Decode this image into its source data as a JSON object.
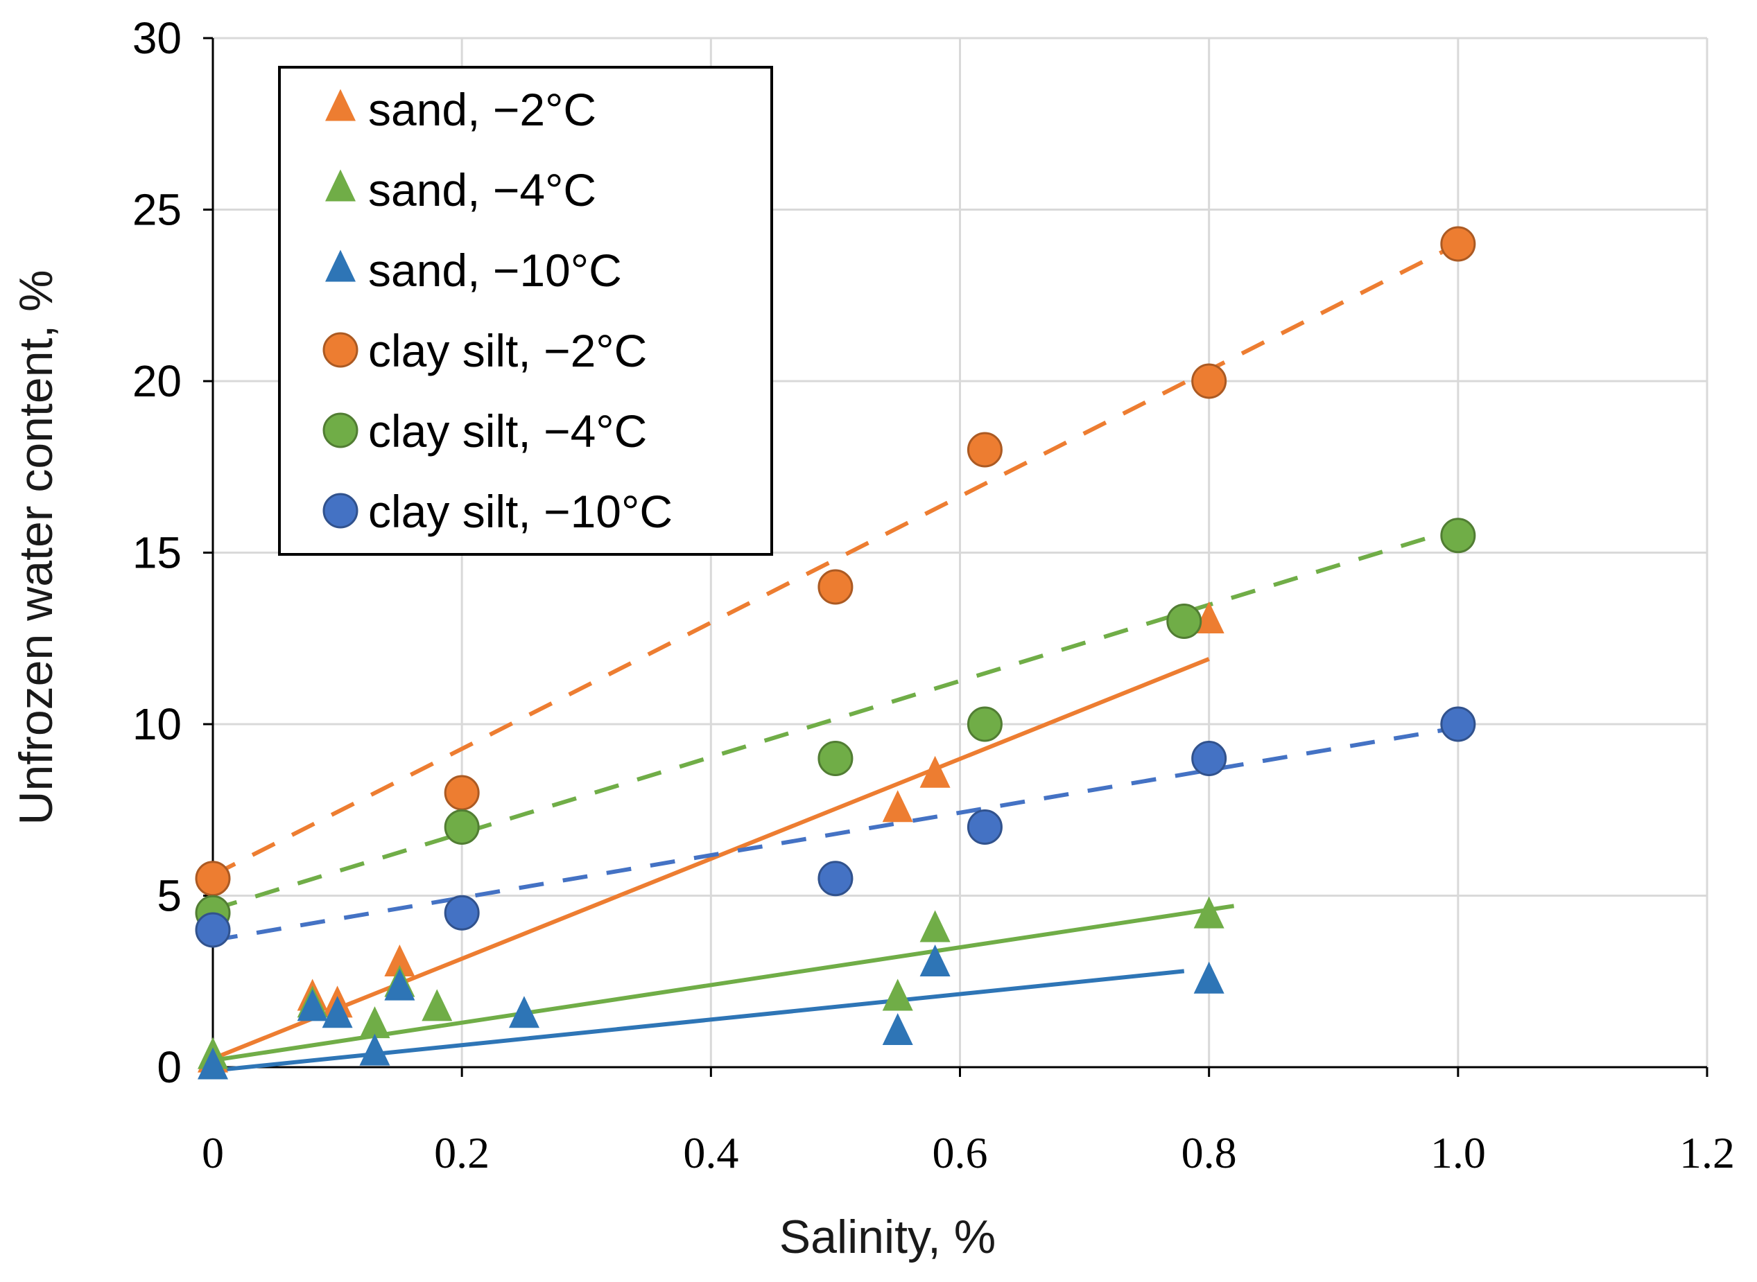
{
  "chart_data": {
    "type": "scatter",
    "title": "",
    "xlabel": "Salinity, %",
    "ylabel": "Unfrozen water content, %",
    "xlim": [
      0,
      1.2
    ],
    "ylim": [
      0,
      30
    ],
    "grid": true,
    "legend_position": "top-left",
    "x_ticks": [
      {
        "value": 0,
        "label": "0"
      },
      {
        "value": 0.2,
        "label": "0.2"
      },
      {
        "value": 0.4,
        "label": "0.4"
      },
      {
        "value": 0.6,
        "label": "0.6"
      },
      {
        "value": 0.8,
        "label": "0.8"
      },
      {
        "value": 1.0,
        "label": "1.0"
      },
      {
        "value": 1.2,
        "label": "1.2"
      }
    ],
    "y_ticks": [
      {
        "value": 0,
        "label": "0"
      },
      {
        "value": 5,
        "label": "5"
      },
      {
        "value": 10,
        "label": "10"
      },
      {
        "value": 15,
        "label": "15"
      },
      {
        "value": 20,
        "label": "20"
      },
      {
        "value": 25,
        "label": "25"
      },
      {
        "value": 30,
        "label": "30"
      }
    ],
    "series": [
      {
        "name": "sand, −2°C",
        "marker": "triangle",
        "color": "#ED7D31",
        "points": [
          [
            0,
            0.2
          ],
          [
            0.08,
            2.0
          ],
          [
            0.1,
            1.8
          ],
          [
            0.15,
            3.0
          ],
          [
            0.55,
            7.5
          ],
          [
            0.58,
            8.5
          ],
          [
            0.8,
            13.0
          ]
        ],
        "trend": {
          "style": "solid",
          "x": [
            0,
            0.8
          ],
          "y": [
            0.25,
            11.9
          ]
        }
      },
      {
        "name": "sand, −4°C",
        "marker": "triangle",
        "color": "#70AD47",
        "points": [
          [
            0,
            0.3
          ],
          [
            0.08,
            1.8
          ],
          [
            0.13,
            1.2
          ],
          [
            0.15,
            2.4
          ],
          [
            0.18,
            1.7
          ],
          [
            0.55,
            2.0
          ],
          [
            0.58,
            4.0
          ],
          [
            0.8,
            4.4
          ]
        ],
        "trend": {
          "style": "solid",
          "x": [
            0,
            0.82
          ],
          "y": [
            0.2,
            4.7
          ]
        }
      },
      {
        "name": "sand, −10°C",
        "marker": "triangle",
        "color": "#2E75B6",
        "points": [
          [
            0,
            0.0
          ],
          [
            0.08,
            1.7
          ],
          [
            0.1,
            1.5
          ],
          [
            0.13,
            0.4
          ],
          [
            0.15,
            2.3
          ],
          [
            0.25,
            1.5
          ],
          [
            0.55,
            1.0
          ],
          [
            0.58,
            3.0
          ],
          [
            0.8,
            2.5
          ]
        ],
        "trend": {
          "style": "solid",
          "x": [
            0,
            0.78
          ],
          "y": [
            -0.1,
            2.8
          ]
        }
      },
      {
        "name": "clay silt, −2°C",
        "marker": "circle",
        "color": "#ED7D31",
        "points": [
          [
            0,
            5.5
          ],
          [
            0.2,
            8.0
          ],
          [
            0.5,
            14.0
          ],
          [
            0.62,
            18.0
          ],
          [
            0.8,
            20.0
          ],
          [
            1.0,
            24.0
          ]
        ],
        "trend": {
          "style": "dashed",
          "x": [
            0,
            1.0
          ],
          "y": [
            5.6,
            24.0
          ]
        }
      },
      {
        "name": "clay silt, −4°C",
        "marker": "circle",
        "color": "#70AD47",
        "points": [
          [
            0,
            4.5
          ],
          [
            0.2,
            7.0
          ],
          [
            0.5,
            9.0
          ],
          [
            0.62,
            10.0
          ],
          [
            0.78,
            13.0
          ],
          [
            1.0,
            15.5
          ]
        ],
        "trend": {
          "style": "dashed",
          "x": [
            0,
            1.0
          ],
          "y": [
            4.6,
            15.7
          ]
        }
      },
      {
        "name": "clay silt, −10°C",
        "marker": "circle",
        "color": "#4472C4",
        "points": [
          [
            0,
            4.0
          ],
          [
            0.2,
            4.5
          ],
          [
            0.5,
            5.5
          ],
          [
            0.62,
            7.0
          ],
          [
            0.8,
            9.0
          ],
          [
            1.0,
            10.0
          ]
        ],
        "trend": {
          "style": "dashed",
          "x": [
            0,
            1.0
          ],
          "y": [
            3.7,
            9.9
          ]
        }
      }
    ]
  }
}
